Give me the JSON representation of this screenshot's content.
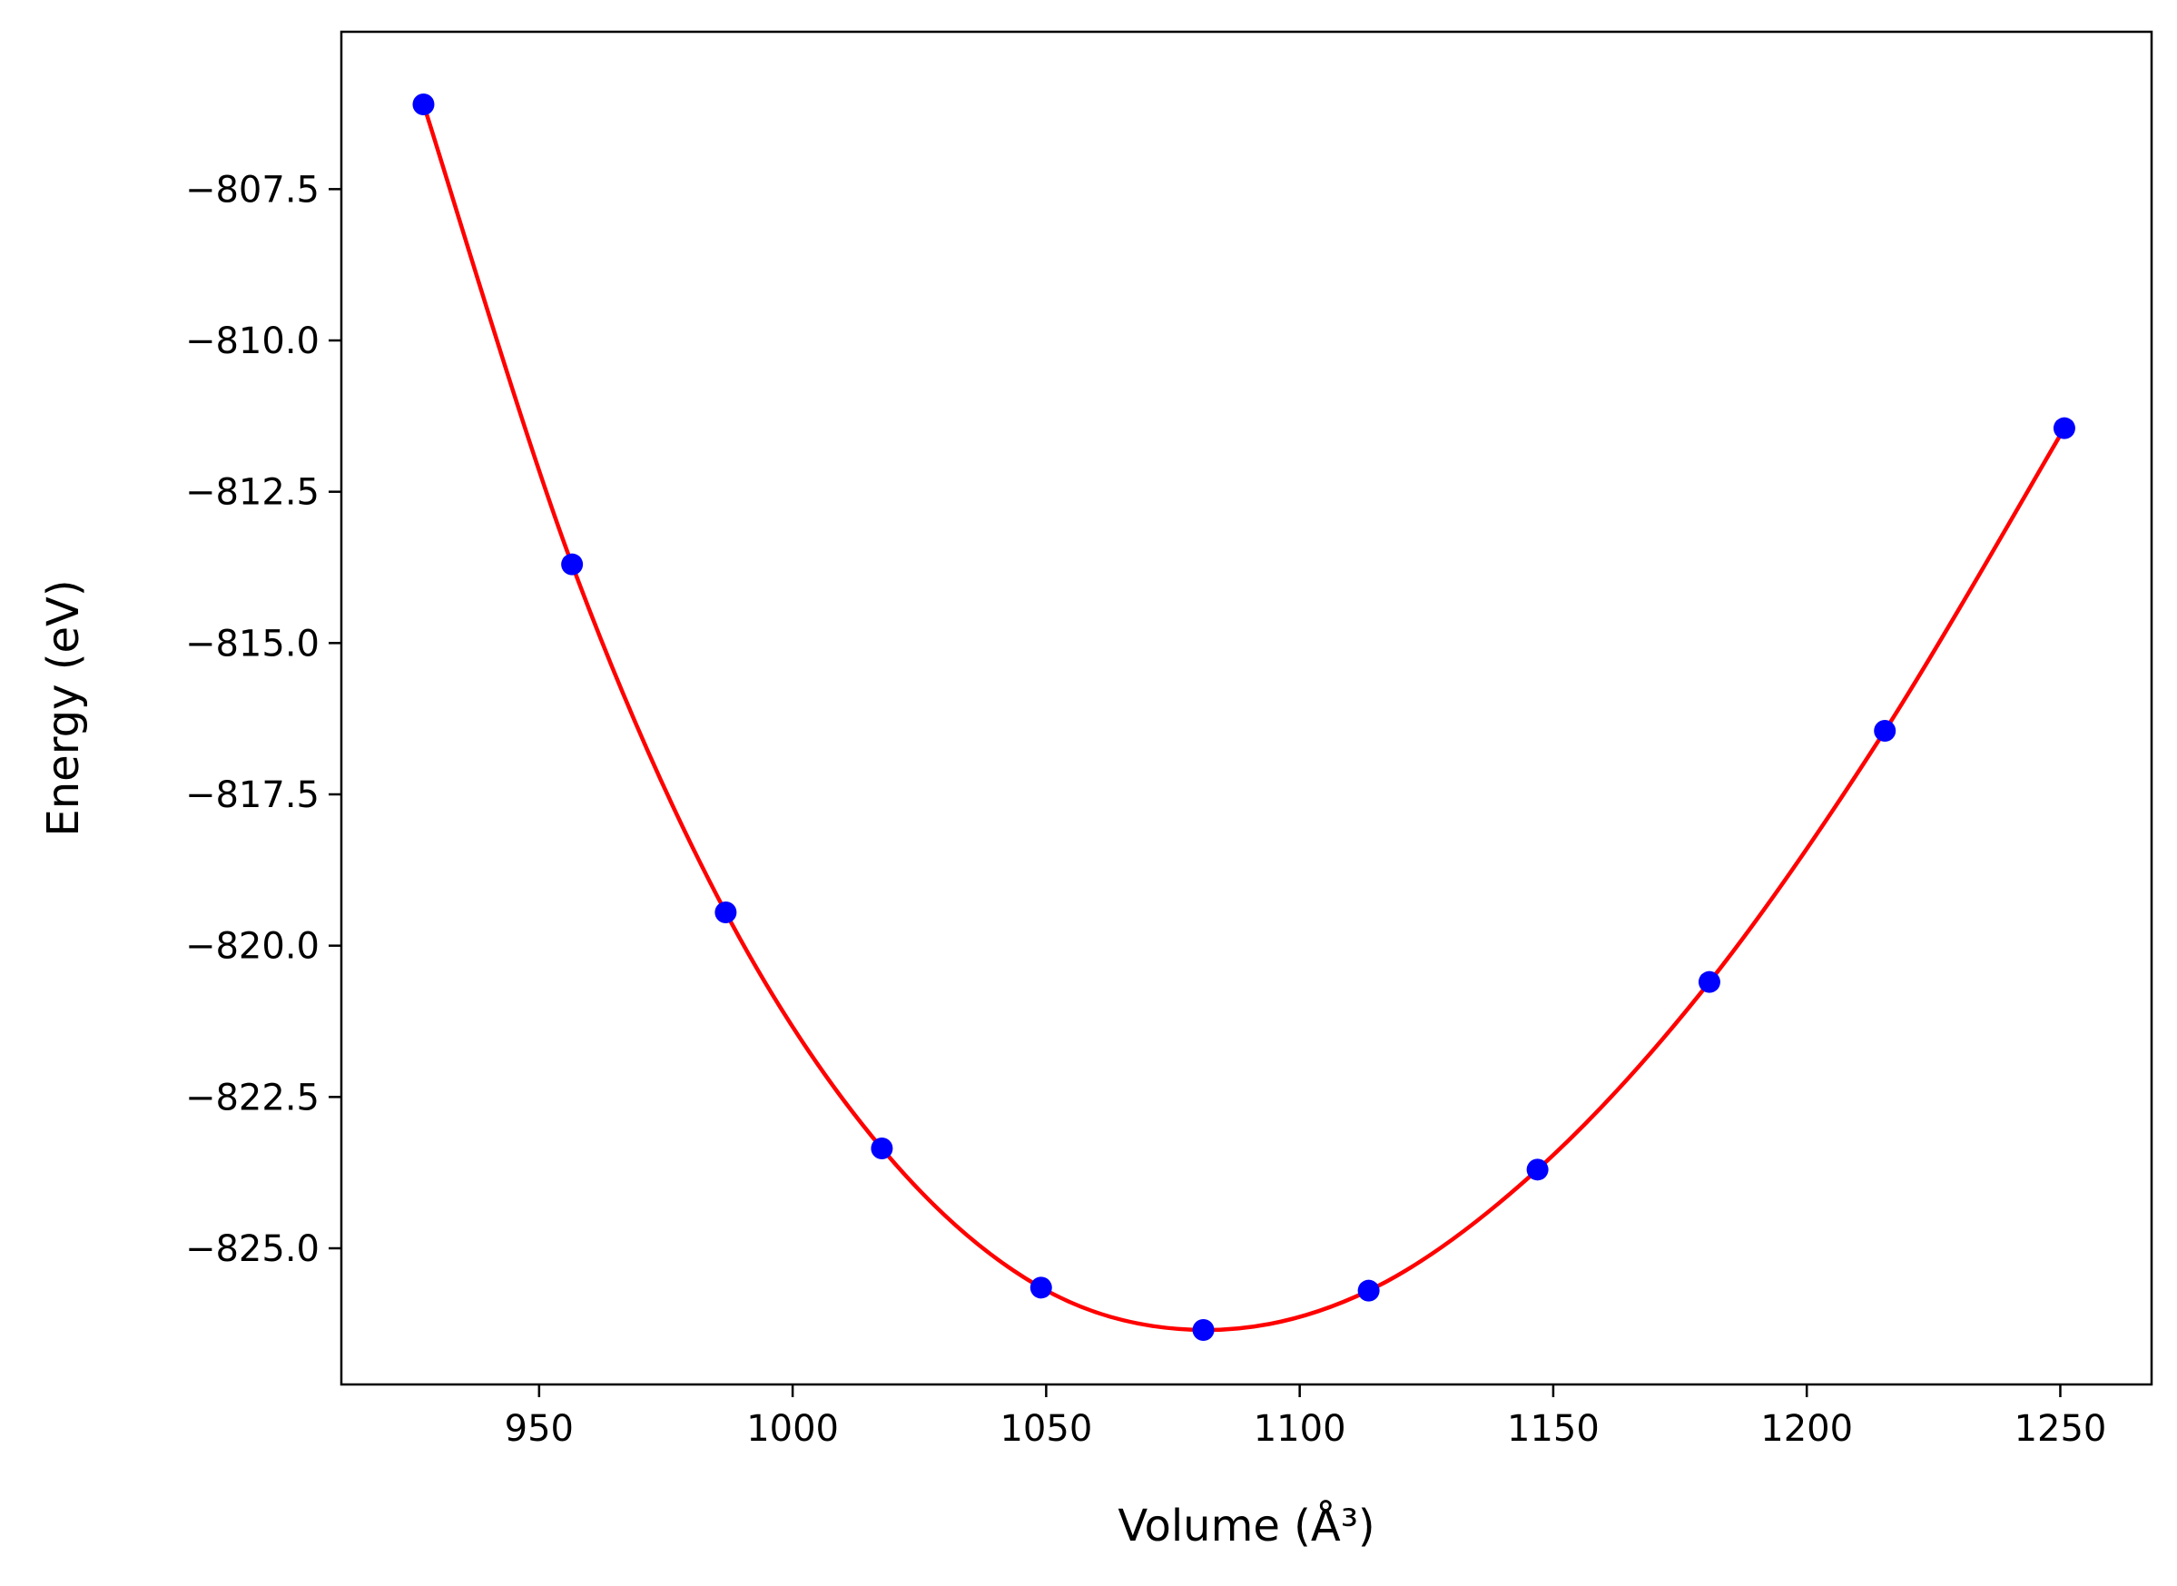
{
  "chart_data": {
    "type": "scatter",
    "title": "",
    "xlabel": "Volume (Å³)",
    "ylabel": "Energy (eV)",
    "xlim": [
      911,
      1268
    ],
    "ylim": [
      -827.25,
      -804.9
    ],
    "xticks": [
      950,
      1000,
      1050,
      1100,
      1150,
      1200,
      1250
    ],
    "xtick_labels": [
      "950",
      "1000",
      "1050",
      "1100",
      "1150",
      "1200",
      "1250"
    ],
    "yticks": [
      -807.5,
      -810.0,
      -812.5,
      -815.0,
      -817.5,
      -820.0,
      -822.5,
      -825.0
    ],
    "ytick_labels": [
      "−807.5",
      "−810.0",
      "−812.5",
      "−815.0",
      "−817.5",
      "−820.0",
      "−822.5",
      "−825.0"
    ],
    "grid": false,
    "series": [
      {
        "kind": "points",
        "color": "#0000ff",
        "x": [
          927.2,
          956.5,
          986.8,
          1017.6,
          1049.0,
          1081.0,
          1113.6,
          1146.9,
          1180.8,
          1215.4,
          1250.8
        ],
        "y": [
          -806.1,
          -813.7,
          -819.45,
          -823.35,
          -825.65,
          -826.35,
          -825.7,
          -823.7,
          -820.6,
          -816.45,
          -811.45
        ]
      },
      {
        "kind": "fit-line",
        "color": "#ff0000",
        "x": [
          927.2,
          956.5,
          986.8,
          1017.6,
          1049.0,
          1081.0,
          1113.6,
          1146.9,
          1180.8,
          1215.4,
          1250.8
        ],
        "y": [
          -806.1,
          -813.7,
          -819.45,
          -823.35,
          -825.65,
          -826.35,
          -825.7,
          -823.7,
          -820.6,
          -816.45,
          -811.45
        ]
      }
    ]
  }
}
